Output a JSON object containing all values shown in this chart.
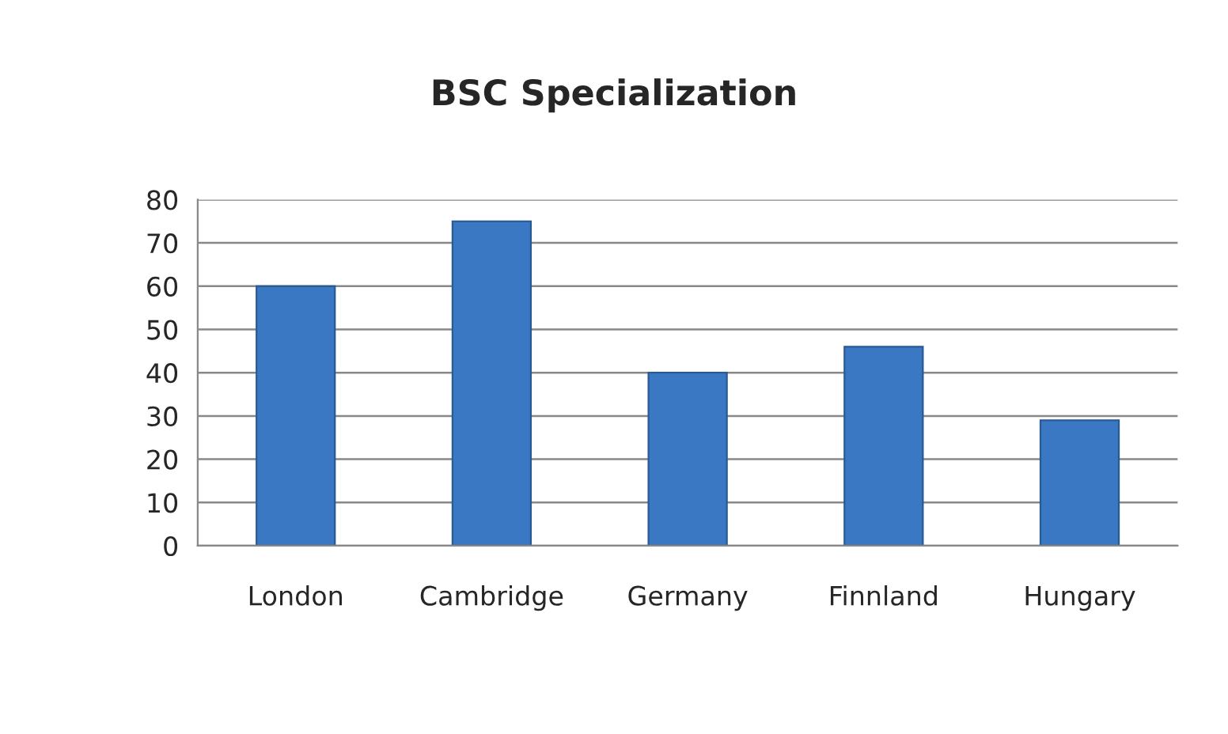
{
  "chart_data": {
    "type": "bar",
    "title": "BSC Specialization",
    "categories": [
      "London",
      "Cambridge",
      "Germany",
      "Finnland",
      "Hungary"
    ],
    "values": [
      60,
      75,
      40,
      46,
      29
    ],
    "color": "#3a78c4",
    "ylim": [
      0,
      80
    ],
    "yticks": [
      0,
      10,
      20,
      30,
      40,
      50,
      60,
      70,
      80
    ],
    "grid": "y",
    "legend": false
  }
}
